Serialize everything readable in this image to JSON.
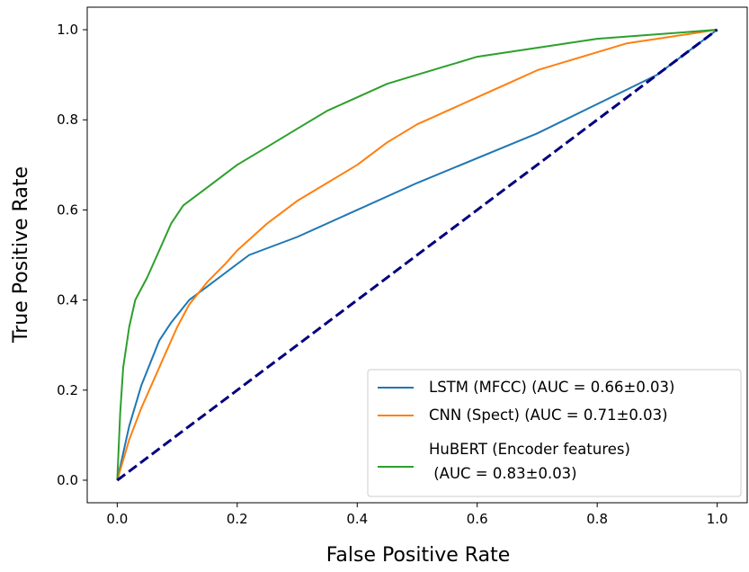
{
  "chart_data": {
    "type": "line",
    "title": "",
    "xlabel": "False Positive Rate",
    "ylabel": "True Positive Rate",
    "xlim": [
      -0.05,
      1.05
    ],
    "ylim": [
      -0.05,
      1.05
    ],
    "xticks": [
      "0.0",
      "0.2",
      "0.4",
      "0.6",
      "0.8",
      "1.0"
    ],
    "yticks": [
      "0.0",
      "0.2",
      "0.4",
      "0.6",
      "0.8",
      "1.0"
    ],
    "grid": false,
    "legend_position": "lower-right",
    "series": [
      {
        "name": "LSTM (MFCC) (AUC = 0.66±0.03)",
        "color": "#1f77b4",
        "x": [
          0,
          0.01,
          0.02,
          0.04,
          0.07,
          0.09,
          0.12,
          0.15,
          0.18,
          0.2,
          0.22,
          0.3,
          0.5,
          0.7,
          0.9,
          1.0
        ],
        "y": [
          0,
          0.06,
          0.12,
          0.21,
          0.31,
          0.35,
          0.4,
          0.43,
          0.46,
          0.48,
          0.5,
          0.54,
          0.66,
          0.77,
          0.9,
          1.0
        ]
      },
      {
        "name": "CNN (Spect) (AUC = 0.71±0.03)",
        "color": "#ff7f0e",
        "x": [
          0,
          0.02,
          0.04,
          0.06,
          0.08,
          0.1,
          0.12,
          0.15,
          0.18,
          0.2,
          0.25,
          0.3,
          0.35,
          0.4,
          0.45,
          0.5,
          0.55,
          0.6,
          0.65,
          0.7,
          0.75,
          0.8,
          0.85,
          0.9,
          0.95,
          1.0
        ],
        "y": [
          0,
          0.09,
          0.16,
          0.22,
          0.28,
          0.34,
          0.39,
          0.44,
          0.48,
          0.51,
          0.57,
          0.62,
          0.66,
          0.7,
          0.75,
          0.79,
          0.82,
          0.85,
          0.88,
          0.91,
          0.93,
          0.95,
          0.97,
          0.98,
          0.99,
          1.0
        ]
      },
      {
        "name": "HuBERT (Encoder features)\n (AUC = 0.83±0.03)",
        "color": "#2ca02c",
        "x": [
          0,
          0.005,
          0.01,
          0.02,
          0.03,
          0.05,
          0.07,
          0.09,
          0.11,
          0.13,
          0.15,
          0.18,
          0.2,
          0.25,
          0.3,
          0.35,
          0.4,
          0.45,
          0.5,
          0.55,
          0.6,
          0.65,
          0.7,
          0.75,
          0.8,
          0.85,
          0.9,
          0.95,
          1.0
        ],
        "y": [
          0,
          0.15,
          0.25,
          0.34,
          0.4,
          0.45,
          0.51,
          0.57,
          0.61,
          0.63,
          0.65,
          0.68,
          0.7,
          0.74,
          0.78,
          0.82,
          0.85,
          0.88,
          0.9,
          0.92,
          0.94,
          0.95,
          0.96,
          0.97,
          0.98,
          0.985,
          0.99,
          0.995,
          1.0
        ]
      },
      {
        "name": "",
        "color": "#000080",
        "dashed": true,
        "x": [
          0,
          1
        ],
        "y": [
          0,
          1
        ]
      }
    ]
  }
}
